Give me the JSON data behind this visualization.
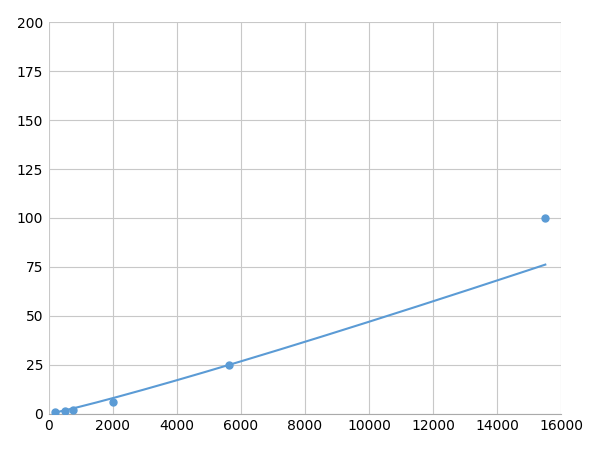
{
  "x": [
    200,
    500,
    750,
    2000,
    5625,
    15500
  ],
  "y": [
    1.0,
    1.5,
    2.0,
    6.0,
    25.0,
    100.0
  ],
  "line_color": "#5b9bd5",
  "marker_color": "#5b9bd5",
  "marker_size": 5,
  "line_width": 1.5,
  "xlim": [
    0,
    16000
  ],
  "ylim": [
    0,
    200
  ],
  "xticks": [
    0,
    2000,
    4000,
    6000,
    8000,
    10000,
    12000,
    14000,
    16000
  ],
  "yticks": [
    0,
    25,
    50,
    75,
    100,
    125,
    150,
    175,
    200
  ],
  "grid_color": "#c8c8c8",
  "background_color": "#ffffff",
  "tick_fontsize": 10,
  "figsize": [
    6.0,
    4.5
  ],
  "dpi": 100
}
